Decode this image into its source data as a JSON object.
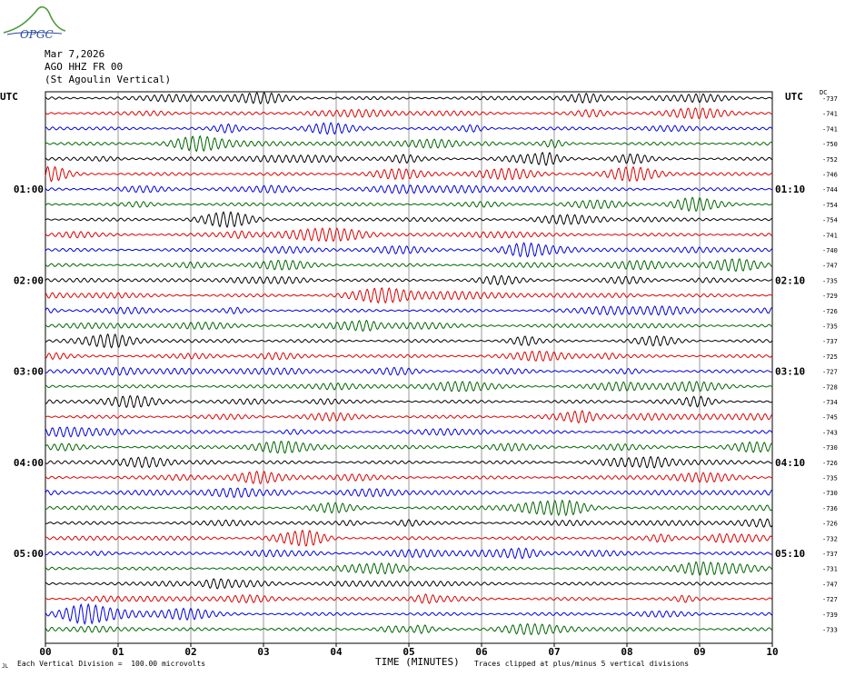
{
  "header": {
    "date": "Mar 7,2026",
    "station": "AGO HHZ FR 00",
    "description": "(St Agoulin Vertical)"
  },
  "logo": {
    "text": "OPGC"
  },
  "labels": {
    "utc_left": "UTC",
    "utc_right": "UTC",
    "dc": "DC",
    "corner": "JL"
  },
  "footer": {
    "scale_text": "Each Vertical Division =  100.00 microvolts",
    "clip_text": "Traces clipped at plus/minus 5 vertical divisions"
  },
  "colors": {
    "trace_cycle": [
      "#000000",
      "#e00000",
      "#0000e0",
      "#006600"
    ],
    "grid": "#000000"
  },
  "chart_data": {
    "type": "line",
    "title": "",
    "xlabel": "TIME (MINUTES)",
    "ylabel": "",
    "xlim": [
      0,
      10
    ],
    "x_ticks": [
      "00",
      "01",
      "02",
      "03",
      "04",
      "05",
      "06",
      "07",
      "08",
      "09",
      "10"
    ],
    "rows": 36,
    "minutes_per_row": 10,
    "left_time_labels": [
      {
        "row": 6,
        "label": "01:00"
      },
      {
        "row": 12,
        "label": "02:00"
      },
      {
        "row": 18,
        "label": "03:00"
      },
      {
        "row": 24,
        "label": "04:00"
      },
      {
        "row": 30,
        "label": "05:00"
      }
    ],
    "right_time_labels": [
      {
        "row": 6,
        "label": "01:10"
      },
      {
        "row": 12,
        "label": "02:10"
      },
      {
        "row": 18,
        "label": "03:10"
      },
      {
        "row": 24,
        "label": "04:10"
      },
      {
        "row": 30,
        "label": "05:10"
      }
    ],
    "dc_offsets": [
      -737,
      -741,
      -741,
      -750,
      -752,
      -746,
      -744,
      -754,
      -754,
      -741,
      -740,
      -747,
      -735,
      -729,
      -726,
      -735,
      -737,
      -725,
      -727,
      -728,
      -734,
      -745,
      -743,
      -730,
      -726,
      -735,
      -730,
      -736,
      -726,
      -732,
      -737,
      -731,
      -747,
      -727,
      -739,
      -733
    ]
  }
}
